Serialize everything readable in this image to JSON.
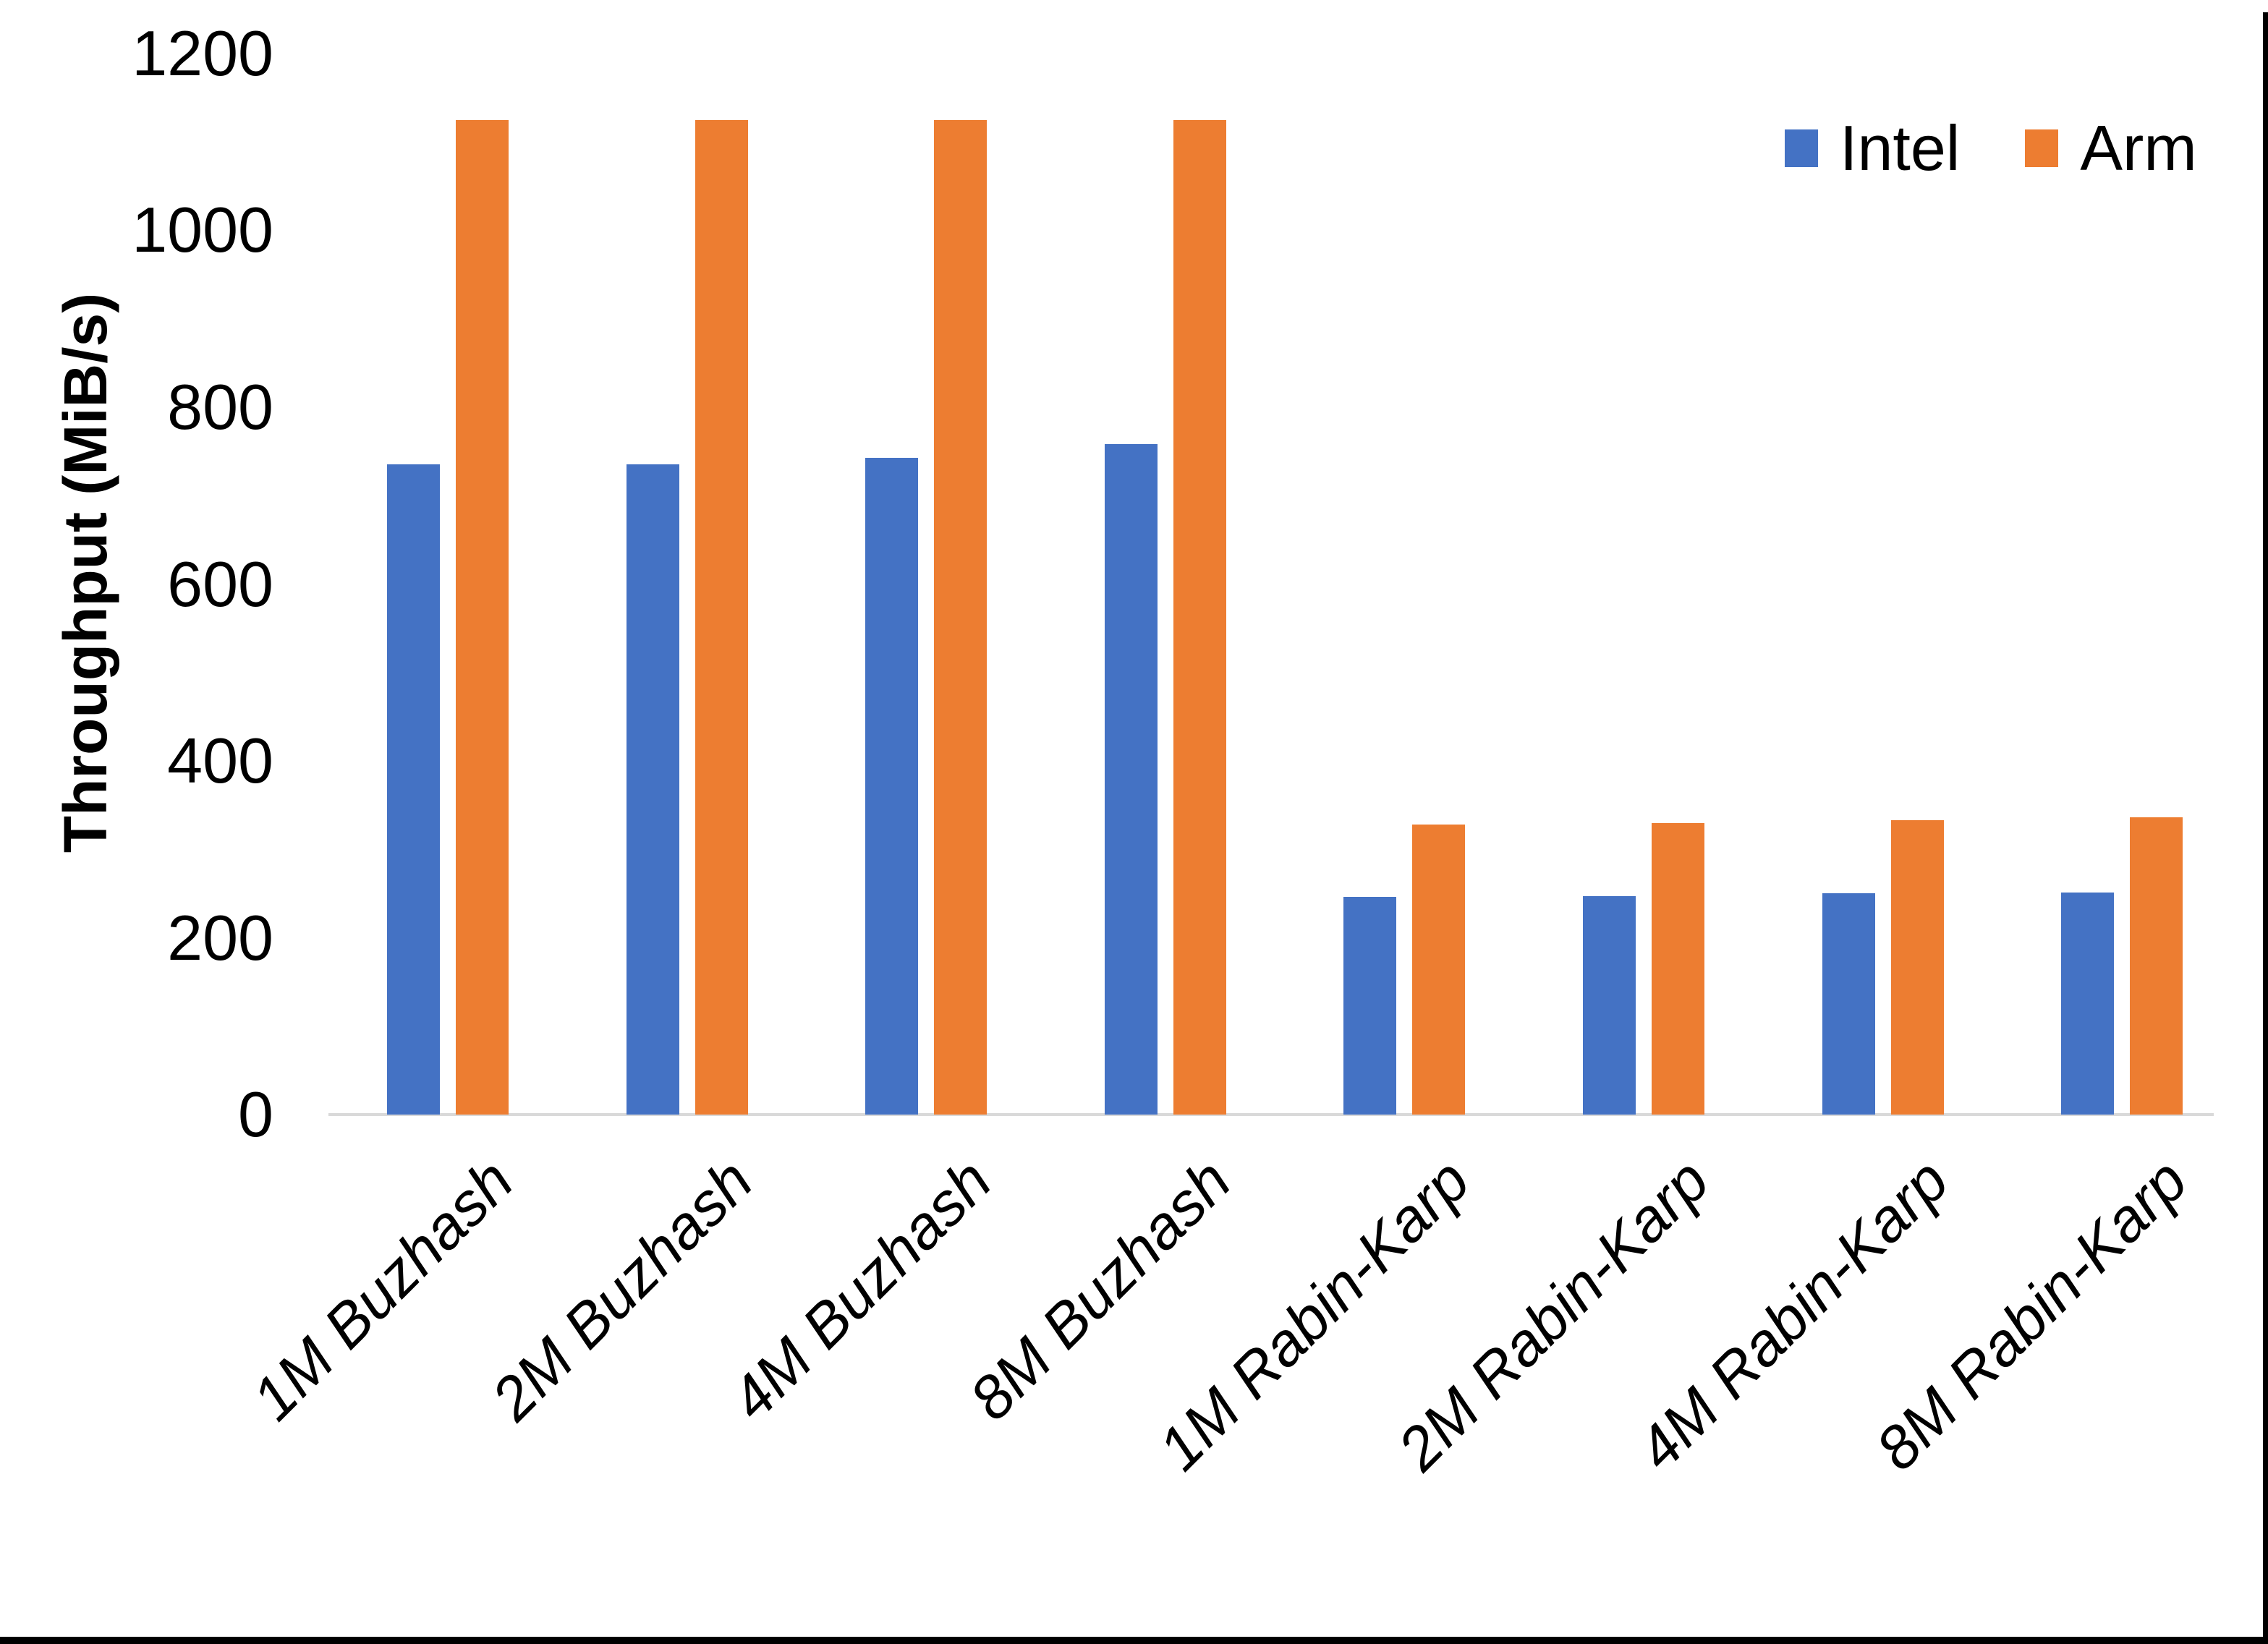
{
  "chart_data": {
    "type": "bar",
    "title": "",
    "xlabel": "",
    "ylabel": "Throughput (MiB/s)",
    "ylim": [
      0,
      1200
    ],
    "yticks": [
      0,
      200,
      400,
      600,
      800,
      1000,
      1200
    ],
    "grid": false,
    "legend_position": "top-right",
    "x_tick_rotation_deg": 45,
    "x_tick_style": "italic",
    "categories": [
      "1M Buzhash",
      "2M Buzhash",
      "4M Buzhash",
      "8M Buzhash",
      "1M Rabin-Karp",
      "2M Rabin-Karp",
      "4M Rabin-Karp",
      "8M Rabin-Karp"
    ],
    "series": [
      {
        "name": "Intel",
        "color": "#4472C4",
        "values": [
          735,
          735,
          743,
          758,
          246,
          247,
          250,
          251
        ]
      },
      {
        "name": "Arm",
        "color": "#ED7D31",
        "values": [
          1125,
          1125,
          1125,
          1125,
          328,
          330,
          333,
          336
        ]
      }
    ],
    "axis_line_color": "#D9D9D9",
    "text_color": "#000000"
  },
  "window": {
    "border_color": "#000000"
  }
}
